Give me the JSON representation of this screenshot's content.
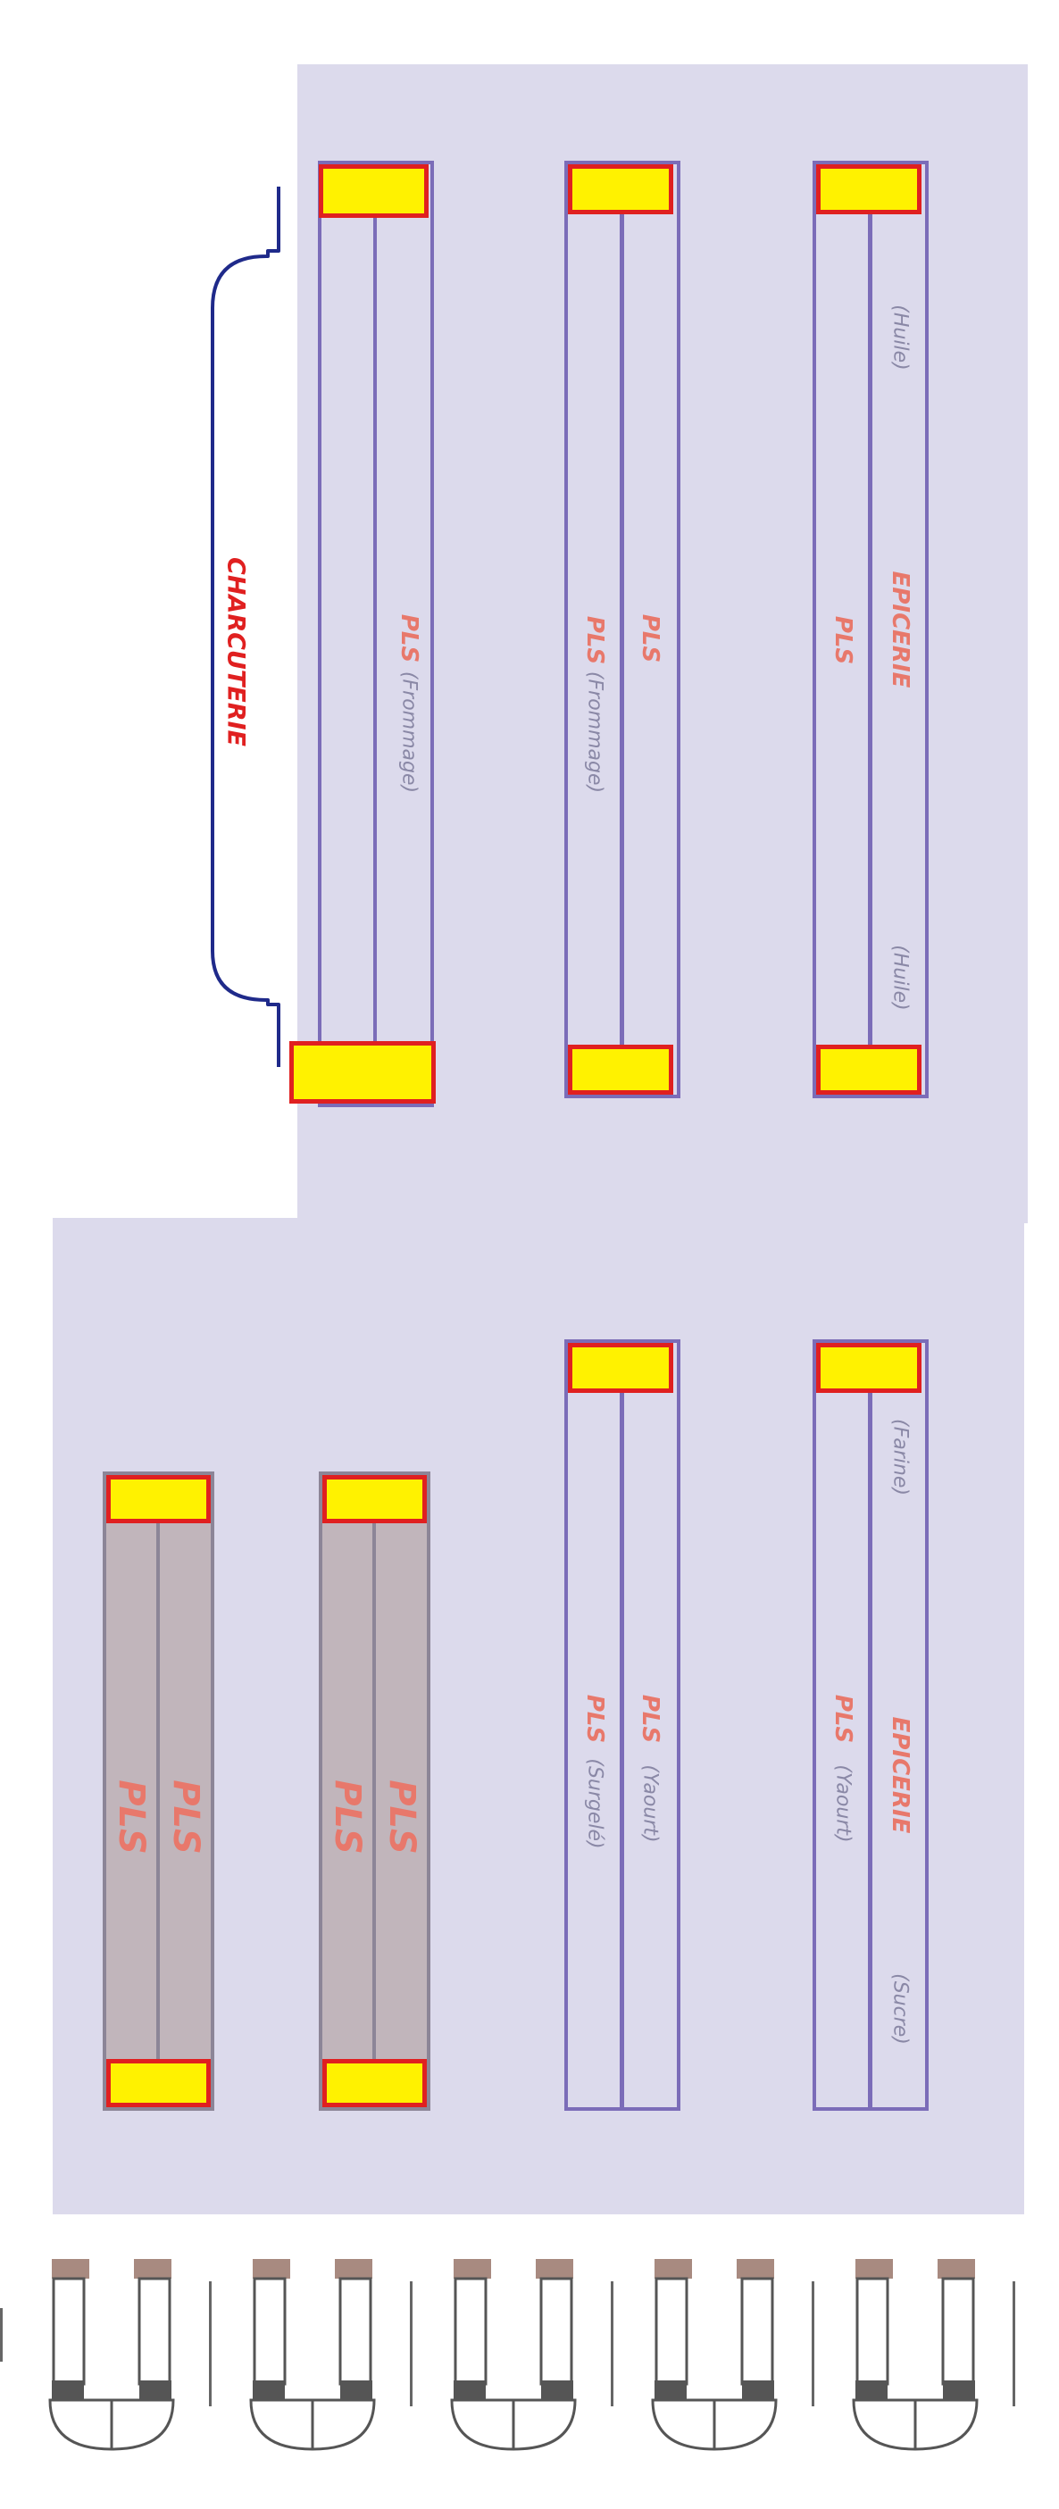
{
  "colors": {
    "zone_fill": "#dcdaec",
    "rack_border": "#7b6cb8",
    "grey_rack_fill": "#c1b5bb",
    "endcap_fill": "#fff200",
    "endcap_border": "#e02020",
    "label_salmon": "#e8786b",
    "label_sub": "#8a88a6",
    "charcuterie_red": "#e02020",
    "counter_blue": "#1f2a8a"
  },
  "charcuterie": {
    "label": "CHARCUTERIE"
  },
  "top_section": {
    "rack1": {
      "pls": "PLS",
      "sub": "(Frommage)"
    },
    "rack2": {
      "pls_left": "PLS",
      "sub_left": "(Frommage)",
      "pls_right": "PLS"
    },
    "rack3": {
      "pls_left": "PLS",
      "epicerie": "EPICERIE",
      "sub_top": "(Huile)",
      "sub_bottom": "(Huile)"
    }
  },
  "bottom_section": {
    "grey_rack1": {
      "pls_a": "PLS",
      "pls_b": "PLS"
    },
    "grey_rack2": {
      "pls_a": "PLS",
      "pls_b": "PLS"
    },
    "rack3": {
      "pls_left": "PLS",
      "sub_left": "(Surgelé)",
      "pls_right": "PLS",
      "sub_right": "(Yaourt)"
    },
    "rack4": {
      "pls_left": "PLS",
      "sub_left": "(Yaourt)",
      "epicerie": "EPICERIE",
      "sub_top": "(Farine)",
      "sub_bottom": "(Sucre)"
    }
  },
  "checkouts": {
    "count": 5
  }
}
